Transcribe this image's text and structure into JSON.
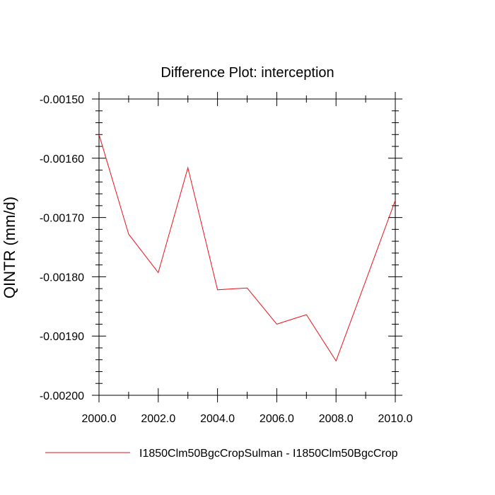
{
  "chart_data": {
    "type": "line",
    "title": "Difference Plot: interception",
    "xlabel": "",
    "ylabel": "QINTR  (mm/d)",
    "xlim": [
      2000,
      2010
    ],
    "ylim": [
      -0.002,
      -0.0015
    ],
    "x_ticks": [
      2000,
      2002,
      2004,
      2006,
      2008,
      2010
    ],
    "x_tick_labels": [
      "2000.0",
      "2002.0",
      "2004.0",
      "2006.0",
      "2008.0",
      "2010.0"
    ],
    "y_ticks": [
      -0.0015,
      -0.0016,
      -0.0017,
      -0.0018,
      -0.0019,
      -0.002
    ],
    "y_tick_labels": [
      "-0.00150",
      "-0.00160",
      "-0.00170",
      "-0.00180",
      "-0.00190",
      "-0.00200"
    ],
    "grid": false,
    "legend_position": "bottom",
    "series": [
      {
        "name": "I1850Clm50BgcCropSulman - I1850Clm50BgcCrop",
        "color": "#e8141c",
        "x": [
          2000,
          2001,
          2002,
          2003,
          2004,
          2005,
          2006,
          2007,
          2008,
          2009,
          2010
        ],
        "y": [
          -0.00156,
          -0.001728,
          -0.001793,
          -0.001616,
          -0.001822,
          -0.001819,
          -0.00188,
          -0.001864,
          -0.001942,
          -0.001807,
          -0.001671
        ]
      }
    ]
  }
}
